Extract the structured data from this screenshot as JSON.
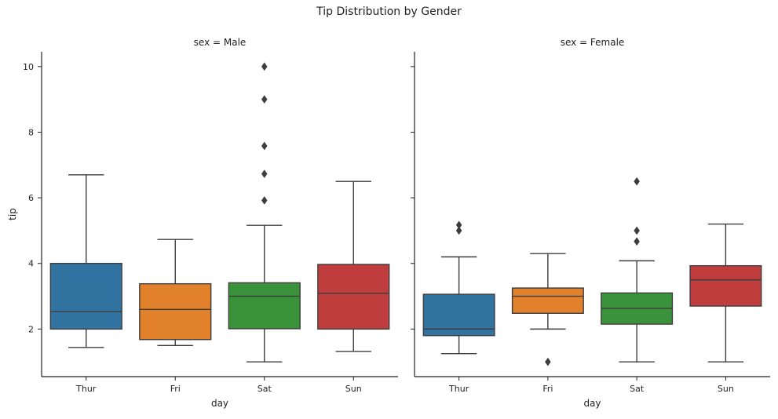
{
  "figure": {
    "suptitle": "Tip Distribution by Gender"
  },
  "chart_data": {
    "type": "box",
    "title": "Tip Distribution by Gender",
    "xlabel": "day",
    "ylabel": "tip",
    "categories": [
      "Thur",
      "Fri",
      "Sat",
      "Sun"
    ],
    "ylim": [
      0.55,
      10.45
    ],
    "yticks": [
      2,
      4,
      6,
      8,
      10
    ],
    "colors": {
      "Thur": "#3274a1",
      "Fri": "#e1812c",
      "Sat": "#3a923a",
      "Sun": "#c03d3e"
    },
    "panels": [
      {
        "title": "sex = Male",
        "boxes": [
          {
            "category": "Thur",
            "whisker_low": 1.44,
            "q1": 2.0,
            "median": 2.53,
            "q3": 4.0,
            "whisker_high": 6.7,
            "outliers": []
          },
          {
            "category": "Fri",
            "whisker_low": 1.5,
            "q1": 1.68,
            "median": 2.6,
            "q3": 3.38,
            "whisker_high": 4.73,
            "outliers": []
          },
          {
            "category": "Sat",
            "whisker_low": 1.0,
            "q1": 2.01,
            "median": 3.0,
            "q3": 3.41,
            "whisker_high": 5.16,
            "outliers": [
              5.92,
              6.73,
              7.58,
              9.0,
              10.0
            ]
          },
          {
            "category": "Sun",
            "whisker_low": 1.32,
            "q1": 2.0,
            "median": 3.09,
            "q3": 3.97,
            "whisker_high": 6.5,
            "outliers": []
          }
        ]
      },
      {
        "title": "sex = Female",
        "boxes": [
          {
            "category": "Thur",
            "whisker_low": 1.25,
            "q1": 1.8,
            "median": 2.0,
            "q3": 3.06,
            "whisker_high": 4.2,
            "outliers": [
              5.0,
              5.17
            ]
          },
          {
            "category": "Fri",
            "whisker_low": 2.0,
            "q1": 2.48,
            "median": 3.0,
            "q3": 3.25,
            "whisker_high": 4.3,
            "outliers": [
              1.0
            ]
          },
          {
            "category": "Sat",
            "whisker_low": 1.0,
            "q1": 2.15,
            "median": 2.63,
            "q3": 3.1,
            "whisker_high": 4.08,
            "outliers": [
              4.67,
              5.0,
              6.5
            ]
          },
          {
            "category": "Sun",
            "whisker_low": 1.0,
            "q1": 2.7,
            "median": 3.5,
            "q3": 3.93,
            "whisker_high": 5.2,
            "outliers": []
          }
        ]
      }
    ]
  }
}
